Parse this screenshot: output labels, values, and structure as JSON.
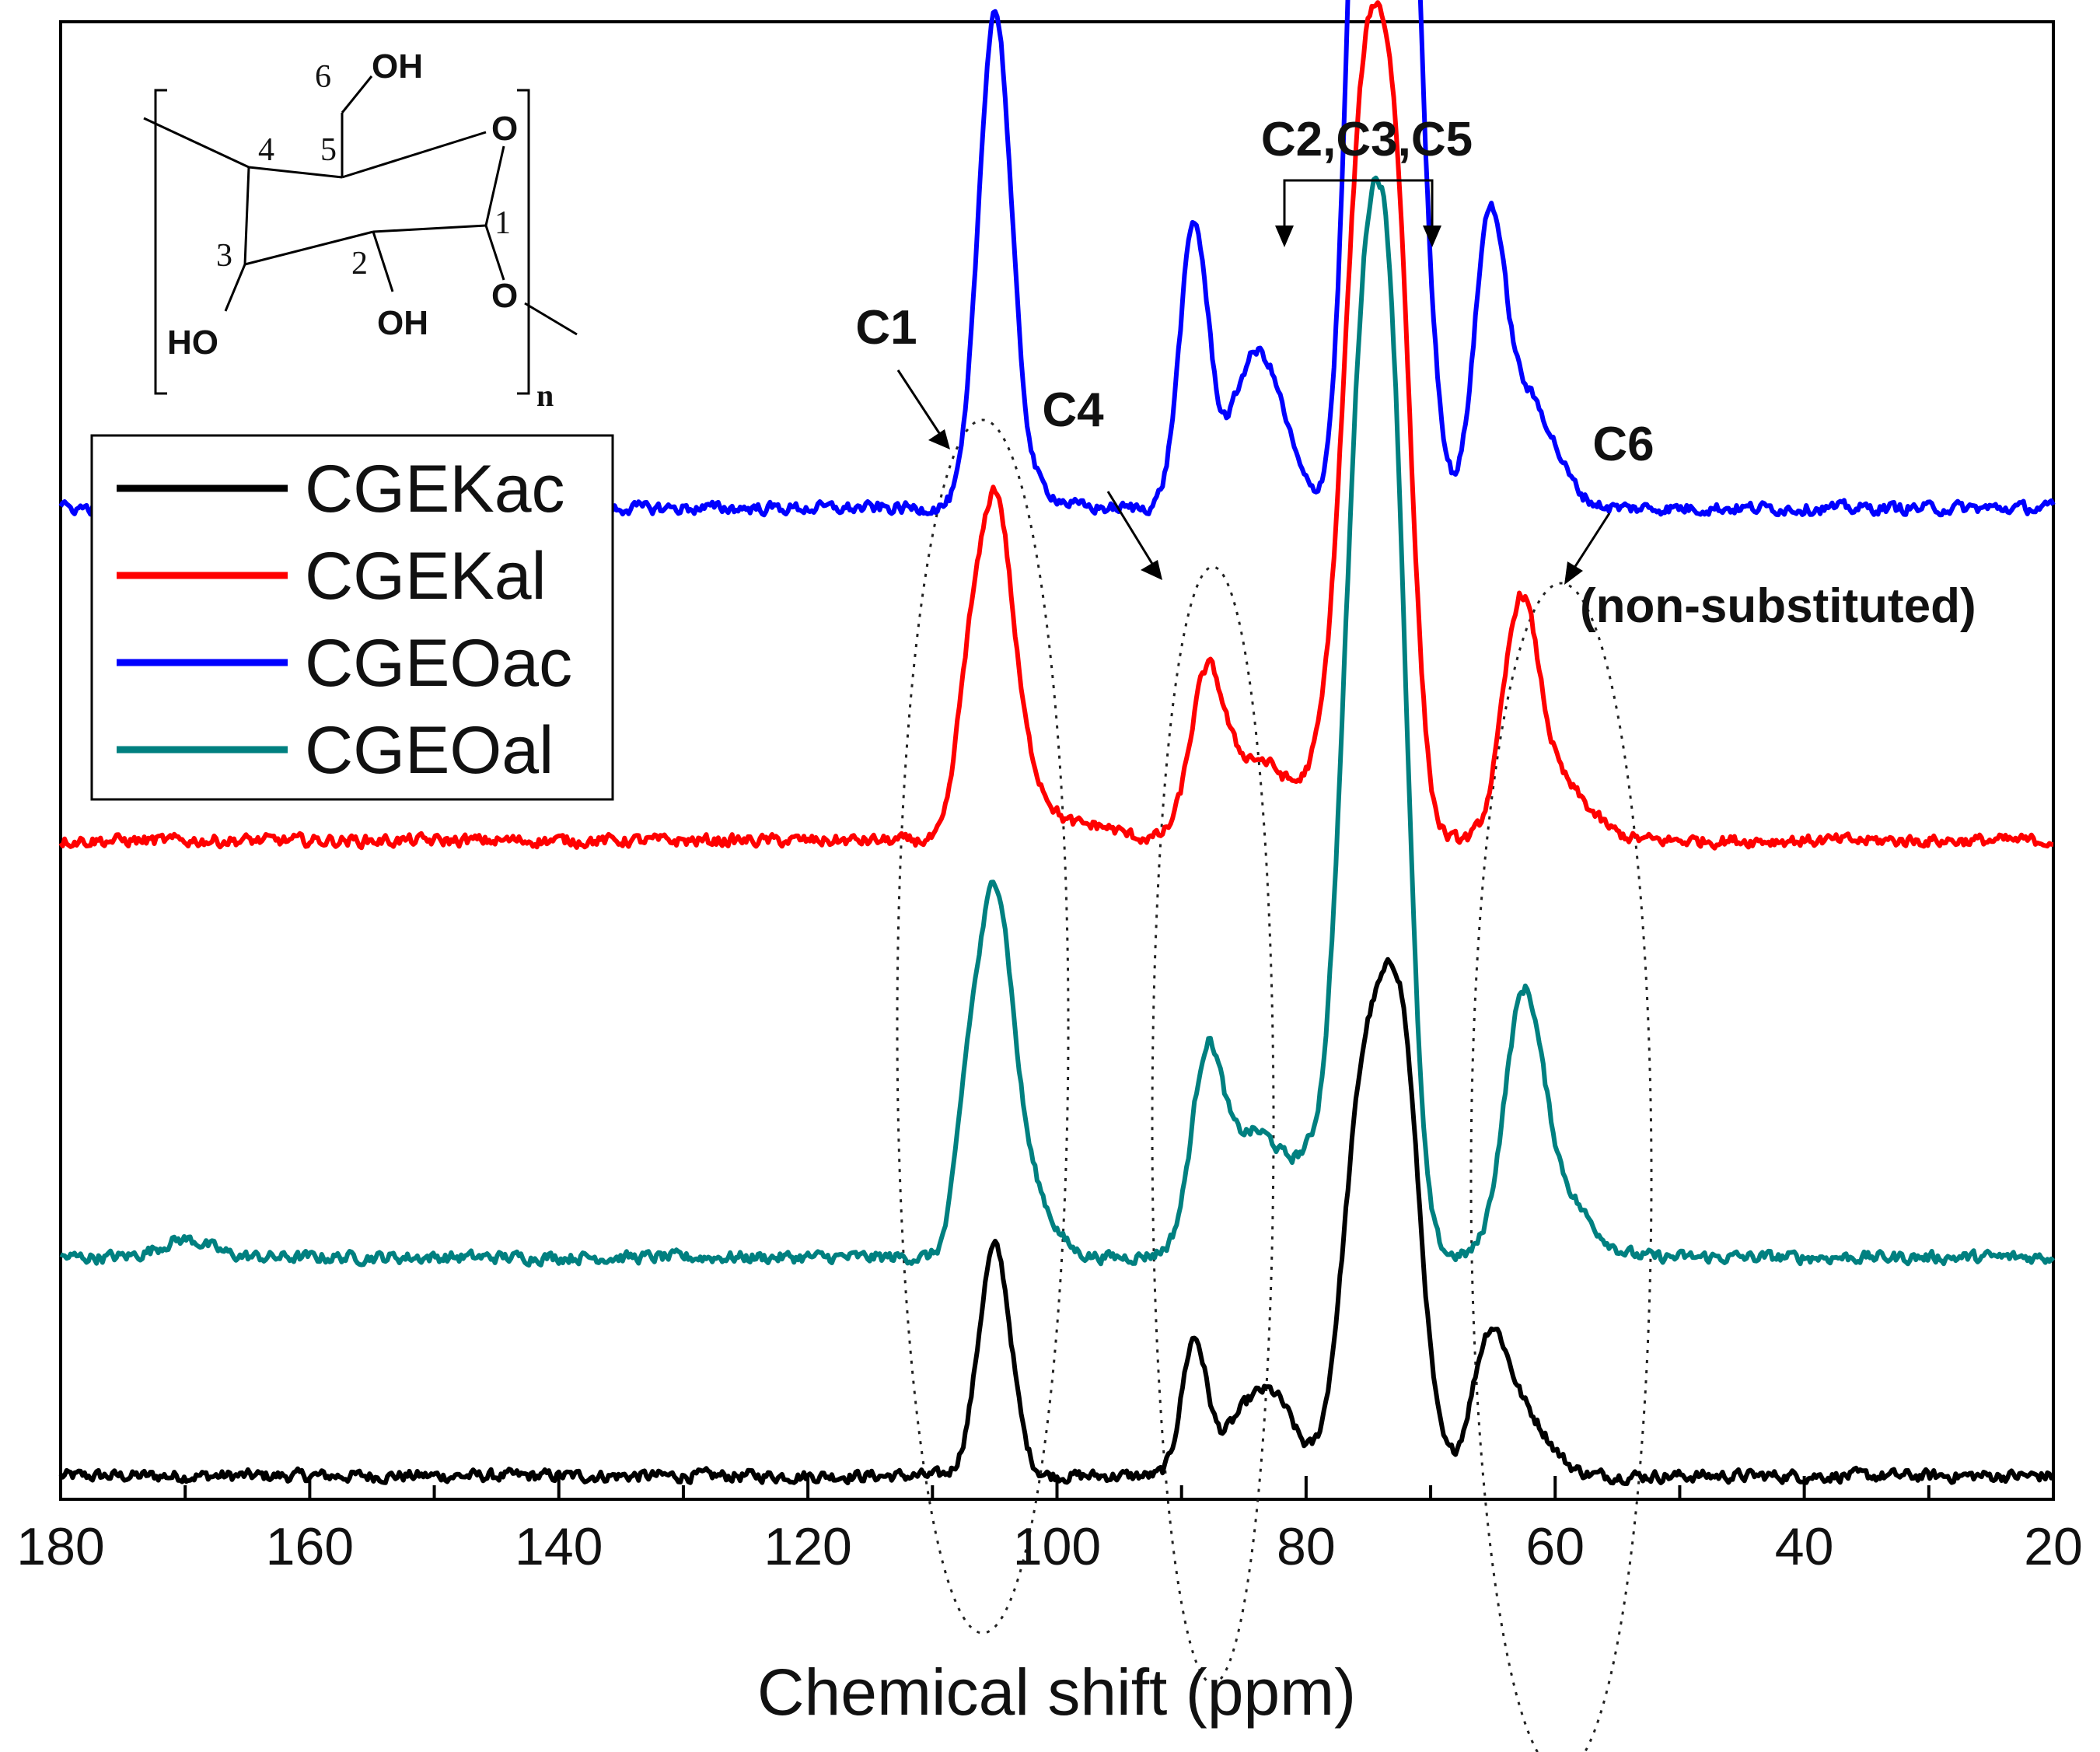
{
  "chart_data": {
    "type": "line",
    "title": "",
    "xlabel": "Chemical shift (ppm)",
    "ylabel": "",
    "xlim": [
      180,
      20
    ],
    "x_reversed": true,
    "xticks": [
      180,
      160,
      140,
      120,
      100,
      80,
      60,
      40,
      20
    ],
    "xtick_labels": [
      "180",
      "160",
      "140",
      "120",
      "100",
      "80",
      "60",
      "40",
      "20"
    ],
    "grid": false,
    "legend_position": "top-left",
    "series": [
      {
        "name": "CGEKac",
        "color": "#000000",
        "offset": 0,
        "noise": 0.0035,
        "peaks": [
          [
            105.0,
            0.155,
            1.3
          ],
          [
            89.0,
            0.09,
            1.0
          ],
          [
            84.5,
            0.045,
            2.0
          ],
          [
            82.0,
            0.03,
            1.5
          ],
          [
            75.3,
            0.26,
            1.7
          ],
          [
            72.3,
            0.27,
            1.5
          ],
          [
            65.3,
            0.085,
            1.4
          ],
          [
            62.5,
            0.04,
            2.0
          ]
        ],
        "points": [
          [
            180,
            0.0
          ],
          [
            108,
            0.01
          ],
          [
            105,
            0.155
          ],
          [
            102,
            0.005
          ],
          [
            89,
            0.09
          ],
          [
            84,
            0.05
          ],
          [
            80,
            0.02
          ],
          [
            75.3,
            0.26
          ],
          [
            72.3,
            0.27
          ],
          [
            69,
            0.03
          ],
          [
            65.3,
            0.085
          ],
          [
            60,
            0.01
          ],
          [
            20,
            0.0
          ]
        ]
      },
      {
        "name": "CGEOal",
        "color": "#008080",
        "offset": 0.148,
        "noise": 0.0035,
        "peaks": [
          [
            170.0,
            0.012,
            2.0
          ],
          [
            107.2,
            0.09,
            1.0
          ],
          [
            105.0,
            0.21,
            1.3
          ],
          [
            103.0,
            0.06,
            2.0
          ],
          [
            88.0,
            0.11,
            1.2
          ],
          [
            84.0,
            0.085,
            3.0
          ],
          [
            80.0,
            0.02,
            1.0
          ],
          [
            75.0,
            0.66,
            1.9
          ],
          [
            72.8,
            0.25,
            1.2
          ],
          [
            62.6,
            0.155,
            1.5
          ],
          [
            60.0,
            0.045,
            2.5
          ]
        ],
        "points": [
          [
            180,
            0.0
          ],
          [
            170,
            0.012
          ],
          [
            107,
            0.1
          ],
          [
            105,
            0.21
          ],
          [
            100,
            0.01
          ],
          [
            88,
            0.11
          ],
          [
            84,
            0.09
          ],
          [
            80,
            0.05
          ],
          [
            75,
            0.68
          ],
          [
            68,
            0.04
          ],
          [
            62.6,
            0.16
          ],
          [
            55,
            0.01
          ],
          [
            20,
            0.0
          ]
        ]
      },
      {
        "name": "CGEKal",
        "color": "#ff0000",
        "offset": 0.43,
        "noise": 0.0035,
        "peaks": [
          [
            107.2,
            0.085,
            1.0
          ],
          [
            105.0,
            0.2,
            1.3
          ],
          [
            103.0,
            0.05,
            2.0
          ],
          [
            97.0,
            0.01,
            2.0
          ],
          [
            88.0,
            0.095,
            1.3
          ],
          [
            84.0,
            0.055,
            3.0
          ],
          [
            79.5,
            0.01,
            1.0
          ],
          [
            75.0,
            0.53,
            1.9
          ],
          [
            72.5,
            0.22,
            1.2
          ],
          [
            62.8,
            0.145,
            1.4
          ],
          [
            60.0,
            0.04,
            2.5
          ]
        ],
        "points": [
          [
            180,
            0.0
          ],
          [
            107,
            0.09
          ],
          [
            105,
            0.2
          ],
          [
            100,
            0.01
          ],
          [
            88,
            0.095
          ],
          [
            84,
            0.06
          ],
          [
            80,
            0.05
          ],
          [
            75,
            0.55
          ],
          [
            68,
            0.03
          ],
          [
            62.8,
            0.15
          ],
          [
            55,
            0.01
          ],
          [
            20,
            0.0
          ]
        ]
      },
      {
        "name": "CGEOac",
        "color": "#0000ff",
        "offset": 0.655,
        "noise": 0.0035,
        "peaks": [
          [
            105.0,
            0.33,
            1.3
          ],
          [
            102.5,
            0.015,
            2.0
          ],
          [
            89.0,
            0.19,
            1.15
          ],
          [
            84.3,
            0.095,
            1.8
          ],
          [
            82.0,
            0.03,
            1.5
          ],
          [
            75.3,
            0.58,
            1.3
          ],
          [
            72.4,
            0.64,
            1.3
          ],
          [
            70.0,
            0.05,
            1.0
          ],
          [
            65.3,
            0.175,
            1.2
          ],
          [
            62.3,
            0.075,
            2.2
          ]
        ],
        "points": [
          [
            180,
            0.0
          ],
          [
            105,
            0.33
          ],
          [
            100,
            0.01
          ],
          [
            89,
            0.19
          ],
          [
            84.3,
            0.1
          ],
          [
            80,
            0.04
          ],
          [
            75.3,
            0.6
          ],
          [
            72.4,
            0.65
          ],
          [
            68,
            0.04
          ],
          [
            65.3,
            0.18
          ],
          [
            58,
            0.01
          ],
          [
            20,
            0.0
          ]
        ]
      }
    ],
    "annotations": [
      {
        "text": "C1",
        "ppm": 106
      },
      {
        "text": "C4",
        "ppm": 90
      },
      {
        "text": "C2,C3,C5",
        "ppm": 76
      },
      {
        "text": "C6",
        "ppm": 62
      },
      {
        "text": "(non-substituted)",
        "ppm": 62
      }
    ]
  },
  "molecule": {
    "numbers": [
      "1",
      "2",
      "3",
      "4",
      "5",
      "6"
    ],
    "oh_top": "OH",
    "oh_c2": "OH",
    "ho_c3": "HO",
    "ring_o": "O",
    "glyco_o": "O",
    "subscript": "n"
  },
  "legend_title": ""
}
